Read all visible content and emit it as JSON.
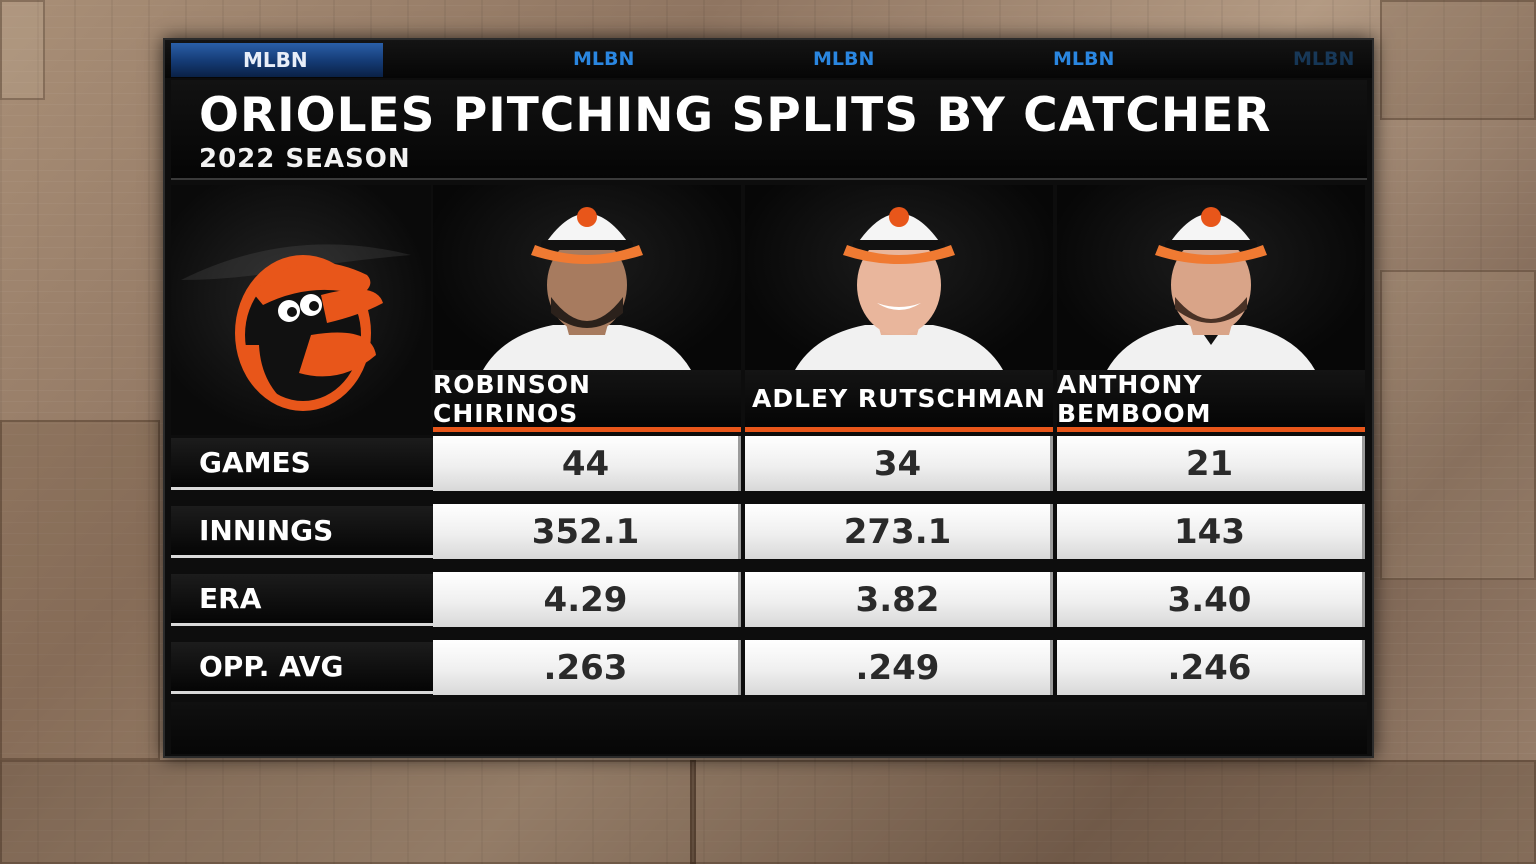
{
  "broadcaster": {
    "active_brand": "MLBN",
    "ticker_brands": [
      "MLBN",
      "MLBN",
      "MLBN",
      "MLBN"
    ]
  },
  "header": {
    "title": "ORIOLES PITCHING SPLITS BY CATCHER",
    "subtitle": "2022 SEASON"
  },
  "team": {
    "logo_icon": "orioles-bird-logo"
  },
  "catchers": [
    {
      "name": "ROBINSON CHIRINOS",
      "photo": "player-headshot"
    },
    {
      "name": "ADLEY RUTSCHMAN",
      "photo": "player-headshot"
    },
    {
      "name": "ANTHONY BEMBOOM",
      "photo": "player-headshot"
    }
  ],
  "table": {
    "rows": [
      {
        "label": "GAMES",
        "values": [
          "44",
          "34",
          "21"
        ]
      },
      {
        "label": "INNINGS",
        "values": [
          "352.1",
          "273.1",
          "143"
        ]
      },
      {
        "label": "ERA",
        "values": [
          "4.29",
          "3.82",
          "3.40"
        ]
      },
      {
        "label": "OPP. AVG",
        "values": [
          ".263",
          ".249",
          ".246"
        ]
      }
    ]
  },
  "colors": {
    "accent_orange": "#e8561a",
    "brand_blue": "#2a86e0",
    "panel_black": "#0d0d0d"
  }
}
